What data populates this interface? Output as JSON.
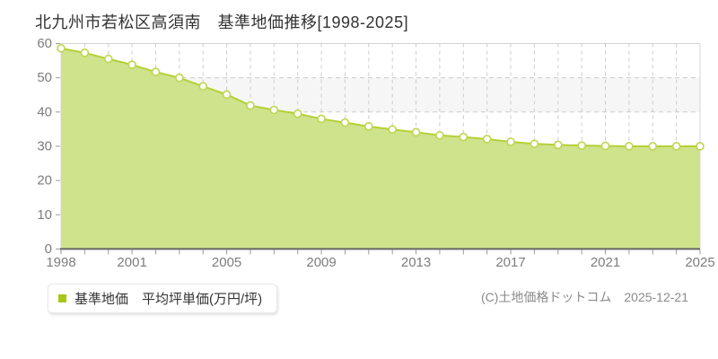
{
  "chart_data": {
    "type": "area",
    "title": "北九州市若松区高須南　基準地価推移[1998-2025]",
    "legend_label": "基準地価　平均坪単価(万円/坪)",
    "legend_position": "bottom-left",
    "x": [
      1998,
      1999,
      2000,
      2001,
      2002,
      2003,
      2004,
      2005,
      2006,
      2007,
      2008,
      2009,
      2010,
      2011,
      2012,
      2013,
      2014,
      2015,
      2016,
      2017,
      2018,
      2019,
      2020,
      2021,
      2022,
      2023,
      2024,
      2025
    ],
    "values": [
      58.6,
      57.3,
      55.5,
      53.8,
      51.7,
      50.0,
      47.5,
      45.1,
      41.9,
      40.6,
      39.5,
      38.0,
      36.9,
      35.8,
      34.9,
      34.1,
      33.2,
      32.7,
      32.1,
      31.3,
      30.7,
      30.4,
      30.2,
      30.1,
      30.0,
      30.0,
      30.0,
      30.0
    ],
    "xlabel": "",
    "ylabel": "",
    "ylim": [
      0,
      60
    ],
    "ytick_interval": 10,
    "ytick_labels": [
      "0",
      "10",
      "20",
      "30",
      "40",
      "50",
      "60"
    ],
    "xtick_labels": [
      "1998",
      "2001",
      "2005",
      "2009",
      "2013",
      "2017",
      "2021",
      "2025"
    ],
    "grid": true,
    "colors": {
      "area_fill": "#cfe28c",
      "line": "#b3d136",
      "point_fill": "#ffffff",
      "point_stroke": "#bdd64f",
      "band_gray": "#f6f6f6",
      "gridline": "#cccccc",
      "plot_border": "#d4d4d4",
      "axis_line": "#666666",
      "tick_label": "#7d7d7d",
      "legend_marker": "#a5c716"
    }
  },
  "footer": {
    "copyright": "(C)土地価格ドットコム　2025-12-21"
  }
}
